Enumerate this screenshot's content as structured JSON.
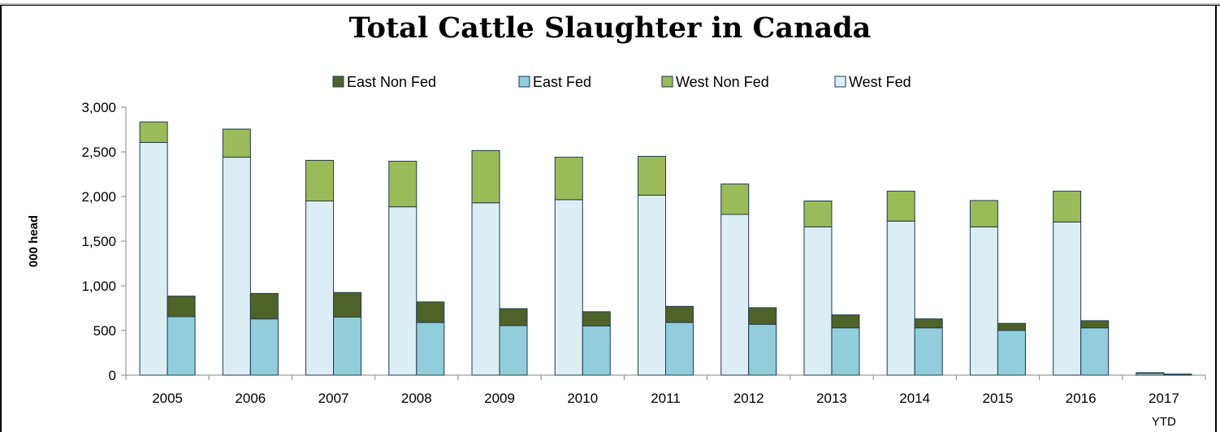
{
  "chart_data": {
    "type": "bar",
    "title": "Total Cattle Slaughter in Canada",
    "ylabel": "000 head",
    "xlabel": "",
    "ylim": [
      0,
      3000
    ],
    "yticks": [
      "0",
      "500",
      "1,000",
      "1,500",
      "2,000",
      "2,500",
      "3,000"
    ],
    "ytick_values": [
      0,
      500,
      1000,
      1500,
      2000,
      2500,
      3000
    ],
    "categories": [
      "2005",
      "2006",
      "2007",
      "2008",
      "2009",
      "2010",
      "2011",
      "2012",
      "2013",
      "2014",
      "2015",
      "2016",
      "2017"
    ],
    "category_sublabels": [
      "",
      "",
      "",
      "",
      "",
      "",
      "",
      "",
      "",
      "",
      "",
      "",
      "YTD"
    ],
    "grid": false,
    "legend_position": "top",
    "stacks": [
      {
        "stack": "West",
        "series": [
          "West Fed",
          "West Non Fed"
        ]
      },
      {
        "stack": "East",
        "series": [
          "East Fed",
          "East Non Fed"
        ]
      }
    ],
    "series": [
      {
        "name": "West Fed",
        "color": "#dbeef4",
        "values": [
          2605,
          2440,
          1950,
          1885,
          1930,
          1965,
          2015,
          1800,
          1660,
          1725,
          1660,
          1715,
          18
        ]
      },
      {
        "name": "West Non Fed",
        "color": "#9bbb59",
        "values": [
          230,
          315,
          455,
          510,
          585,
          475,
          435,
          340,
          290,
          335,
          295,
          345,
          10
        ]
      },
      {
        "name": "East Fed",
        "color": "#92cddc",
        "values": [
          655,
          630,
          650,
          590,
          555,
          550,
          590,
          570,
          530,
          530,
          500,
          530,
          8
        ]
      },
      {
        "name": "East Non Fed",
        "color": "#4f6228",
        "values": [
          230,
          285,
          275,
          230,
          190,
          160,
          180,
          185,
          145,
          100,
          80,
          80,
          4
        ]
      }
    ],
    "legend_order": [
      "East Non Fed",
      "East Fed",
      "West Non Fed",
      "West Fed"
    ]
  }
}
